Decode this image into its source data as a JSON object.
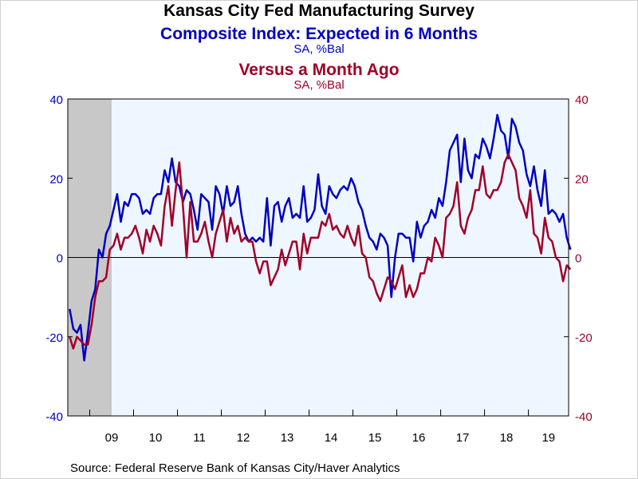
{
  "colors": {
    "series1": "#0000c0",
    "series2": "#a00028",
    "plot_bg": "#eef6ff",
    "recession": "#c8c8c8"
  },
  "chart_data": {
    "type": "line",
    "title": "Kansas City Fed Manufacturing Survey",
    "source": "Source:  Federal Reserve Bank of Kansas City/Haver Analytics",
    "x_start": "2008-07",
    "x_end": "2019-11",
    "x_tick_labels": [
      "09",
      "10",
      "11",
      "12",
      "13",
      "14",
      "15",
      "16",
      "17",
      "18",
      "19"
    ],
    "x_tick_years": [
      2009,
      2010,
      2011,
      2012,
      2013,
      2014,
      2015,
      2016,
      2017,
      2018,
      2019
    ],
    "ylim": [
      -40,
      40
    ],
    "y_ticks": [
      -40,
      -20,
      0,
      20,
      40
    ],
    "y_right_ticks": [
      -40,
      -20,
      0,
      20,
      40
    ],
    "recession_shading": {
      "start": "2008-07",
      "end": "2009-06"
    },
    "series": [
      {
        "name": "Composite Index: Expected in 6 Months",
        "units": "SA, %Bal",
        "axis": "left",
        "values": [
          -13,
          -18,
          -19,
          -17,
          -26,
          -19,
          -11,
          -8,
          2,
          0,
          6,
          8,
          12,
          16,
          9,
          14,
          13,
          16,
          16,
          15,
          11,
          12,
          11,
          15,
          16,
          16,
          22,
          19,
          25,
          19,
          18,
          14,
          17,
          16,
          12,
          7,
          16,
          15,
          14,
          7,
          18,
          16,
          11,
          18,
          13,
          14,
          18,
          11,
          6,
          4,
          5,
          4,
          5,
          4,
          15,
          3,
          13,
          14,
          9,
          13,
          15,
          10,
          11,
          10,
          18,
          9,
          10,
          12,
          21,
          13,
          11,
          18,
          16,
          15,
          17,
          18,
          17,
          20,
          18,
          14,
          12,
          8,
          5,
          4,
          2,
          6,
          5,
          3,
          -10,
          0,
          6,
          6,
          5,
          5,
          -1,
          9,
          5,
          8,
          9,
          12,
          10,
          15,
          13,
          19,
          27,
          29,
          31,
          19,
          30,
          22,
          20,
          26,
          25,
          30,
          28,
          25,
          30,
          36,
          32,
          31,
          25,
          35,
          33,
          29,
          27,
          21,
          18,
          23,
          17,
          13,
          22,
          11,
          12,
          11,
          9,
          11,
          5,
          2
        ]
      },
      {
        "name": "Versus a Month Ago",
        "units": "SA, %Bal",
        "axis": "right",
        "values": [
          -20,
          -23,
          -20,
          -21,
          -22,
          -22,
          -17,
          -10,
          -6,
          -6,
          -5,
          2,
          3,
          6,
          2,
          5,
          5,
          6,
          8,
          5,
          1,
          7,
          4,
          8,
          6,
          3,
          13,
          18,
          8,
          17,
          24,
          13,
          0,
          14,
          4,
          4,
          6,
          9,
          4,
          0,
          6,
          9,
          12,
          4,
          10,
          6,
          8,
          4,
          5,
          4,
          4,
          -1,
          -4,
          -1,
          -1,
          -7,
          -5,
          -3,
          2,
          -2,
          1,
          4,
          4,
          -3,
          6,
          1,
          5,
          5,
          5,
          9,
          8,
          11,
          7,
          8,
          6,
          5,
          8,
          5,
          3,
          8,
          1,
          0,
          -5,
          -6,
          -9,
          -11,
          -8,
          -5,
          -6,
          -8,
          -5,
          -2,
          -10,
          -7,
          -10,
          -8,
          -4,
          -4,
          0,
          -1,
          5,
          3,
          0,
          10,
          11,
          13,
          19,
          8,
          6,
          10,
          12,
          17,
          17,
          23,
          16,
          15,
          17,
          17,
          19,
          24,
          26,
          24,
          22,
          15,
          13,
          10,
          17,
          6,
          5,
          1,
          10,
          5,
          4,
          0,
          -1,
          -6,
          -2,
          -3
        ]
      }
    ]
  }
}
